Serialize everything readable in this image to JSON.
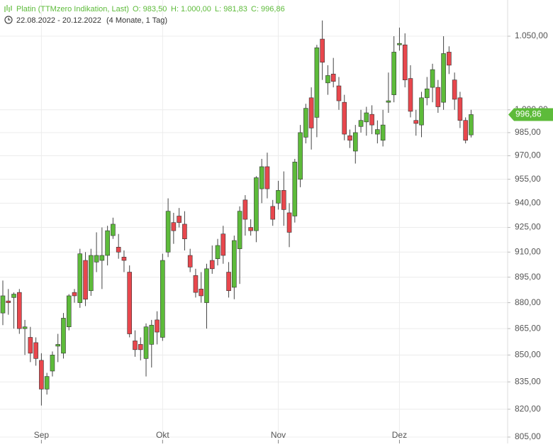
{
  "chart_data": {
    "type": "candlestick",
    "title": "Platin (TTMzero Indikation, Last)",
    "ohlc_labels": [
      "O: 983,50",
      "H: 1.000,00",
      "L: 981,83",
      "C: 996,86"
    ],
    "date_range": "22.08.2022 - 20.12.2022",
    "period": "(4 Monate, 1 Tag)",
    "last_price_label": "996,86",
    "log_scale": true,
    "grid": true,
    "up_color": "#5dbb3a",
    "down_color": "#e8474d",
    "last_price_color": "#5dbb3a",
    "ylim": [
      801.6,
      1075.5
    ],
    "yticks": [
      {
        "value": 805,
        "label": "805,00"
      },
      {
        "value": 820,
        "label": "820,00"
      },
      {
        "value": 835,
        "label": "835,00"
      },
      {
        "value": 850,
        "label": "850,00"
      },
      {
        "value": 865,
        "label": "865,00"
      },
      {
        "value": 880,
        "label": "880,00"
      },
      {
        "value": 895,
        "label": "895,00"
      },
      {
        "value": 910,
        "label": "910,00"
      },
      {
        "value": 925,
        "label": "925,00"
      },
      {
        "value": 940,
        "label": "940,00"
      },
      {
        "value": 955,
        "label": "955,00"
      },
      {
        "value": 970,
        "label": "970,00"
      },
      {
        "value": 985,
        "label": "985,00"
      },
      {
        "value": 1000,
        "label": "1.000,00"
      },
      {
        "value": 1050,
        "label": "1.050,00"
      }
    ],
    "categories": [
      null,
      null,
      null,
      null,
      null,
      null,
      null,
      "Sep",
      null,
      null,
      null,
      null,
      null,
      null,
      null,
      null,
      null,
      null,
      null,
      null,
      null,
      null,
      null,
      null,
      null,
      null,
      null,
      null,
      null,
      "Okt",
      null,
      null,
      null,
      null,
      null,
      null,
      null,
      null,
      null,
      null,
      null,
      null,
      null,
      null,
      null,
      null,
      null,
      null,
      null,
      null,
      "Nov",
      null,
      null,
      null,
      null,
      null,
      null,
      null,
      null,
      null,
      null,
      null,
      null,
      null,
      null,
      null,
      null,
      null,
      null,
      null,
      null,
      null,
      "Dez",
      null,
      null,
      null,
      null,
      null,
      null,
      null,
      null,
      null,
      null,
      null,
      null,
      null
    ],
    "open": [
      874,
      881,
      883,
      886,
      865,
      860,
      857,
      847,
      831,
      841,
      855,
      851,
      866,
      886,
      880,
      905,
      887,
      904,
      905,
      908,
      920,
      913,
      907,
      898,
      858,
      856,
      848,
      856,
      870,
      860,
      910,
      928,
      932,
      927,
      908,
      896,
      888,
      880,
      905,
      906,
      921,
      898,
      889,
      912,
      942,
      925,
      923,
      949,
      963,
      938,
      940,
      948,
      934,
      932,
      955,
      982,
      1008,
      995,
      1048,
      1018,
      1024,
      1016,
      1005,
      983,
      973,
      989,
      992,
      997,
      984,
      980,
      1005,
      1010,
      1044,
      1044,
      1021,
      993,
      990,
      1008,
      1015,
      1015,
      1005,
      1039,
      1020,
      1008,
      993,
      983.5
    ],
    "high": [
      893,
      888,
      886,
      888,
      870,
      866,
      860,
      851,
      840,
      852,
      862,
      874,
      885,
      888,
      912,
      910,
      912,
      922,
      925,
      926,
      931,
      921,
      911,
      902,
      864,
      860,
      868,
      870,
      875,
      909,
      943,
      934,
      937,
      935,
      912,
      900,
      898,
      903,
      914,
      918,
      926,
      904,
      920,
      938,
      945,
      930,
      957,
      968,
      972,
      942,
      954,
      960,
      940,
      968,
      990,
      1004,
      1015,
      1044,
      1061,
      1030,
      1035,
      1022,
      1010,
      987,
      990,
      1000,
      1002,
      1003,
      993,
      1000,
      1025,
      1050,
      1056,
      1052,
      1030,
      1000,
      1012,
      1022,
      1031,
      1020,
      1050,
      1043,
      1025,
      1012,
      995,
      1000
    ],
    "low": [
      867,
      873,
      865,
      862,
      850,
      846,
      844,
      822,
      828,
      838,
      846,
      848,
      864,
      880,
      877,
      878,
      884,
      898,
      888,
      902,
      918,
      906,
      898,
      860,
      849,
      847,
      838,
      843,
      856,
      858,
      907,
      915,
      925,
      911,
      898,
      883,
      880,
      865,
      897,
      902,
      903,
      883,
      882,
      891,
      920,
      920,
      916,
      940,
      943,
      926,
      936,
      926,
      913,
      928,
      950,
      978,
      974,
      982,
      1020,
      1010,
      1015,
      1000,
      980,
      975,
      965,
      985,
      983,
      984,
      978,
      976,
      998,
      1005,
      1040,
      1015,
      995,
      983,
      982,
      1003,
      1005,
      998,
      1000,
      1024,
      1000,
      988,
      978,
      981.83
    ],
    "close": [
      884,
      880,
      885,
      865,
      866,
      851,
      848,
      831,
      838,
      850,
      856,
      871,
      884,
      884,
      909,
      882,
      908,
      908,
      908,
      923,
      927,
      910,
      905,
      862,
      853,
      853,
      866,
      867,
      863,
      905,
      935,
      923,
      928,
      918,
      901,
      886,
      884,
      900,
      900,
      914,
      908,
      887,
      917,
      935,
      930,
      923,
      956,
      963,
      949,
      930,
      948,
      936,
      922,
      966,
      985,
      1001,
      988,
      1042,
      1032,
      1023,
      1019,
      1006,
      984,
      980,
      985,
      993,
      998,
      990,
      987,
      990,
      1006,
      1039,
      1045,
      1020,
      999,
      991,
      1008,
      1014,
      1027,
      1002,
      1038,
      1030,
      1007,
      993,
      980,
      996.86
    ]
  }
}
